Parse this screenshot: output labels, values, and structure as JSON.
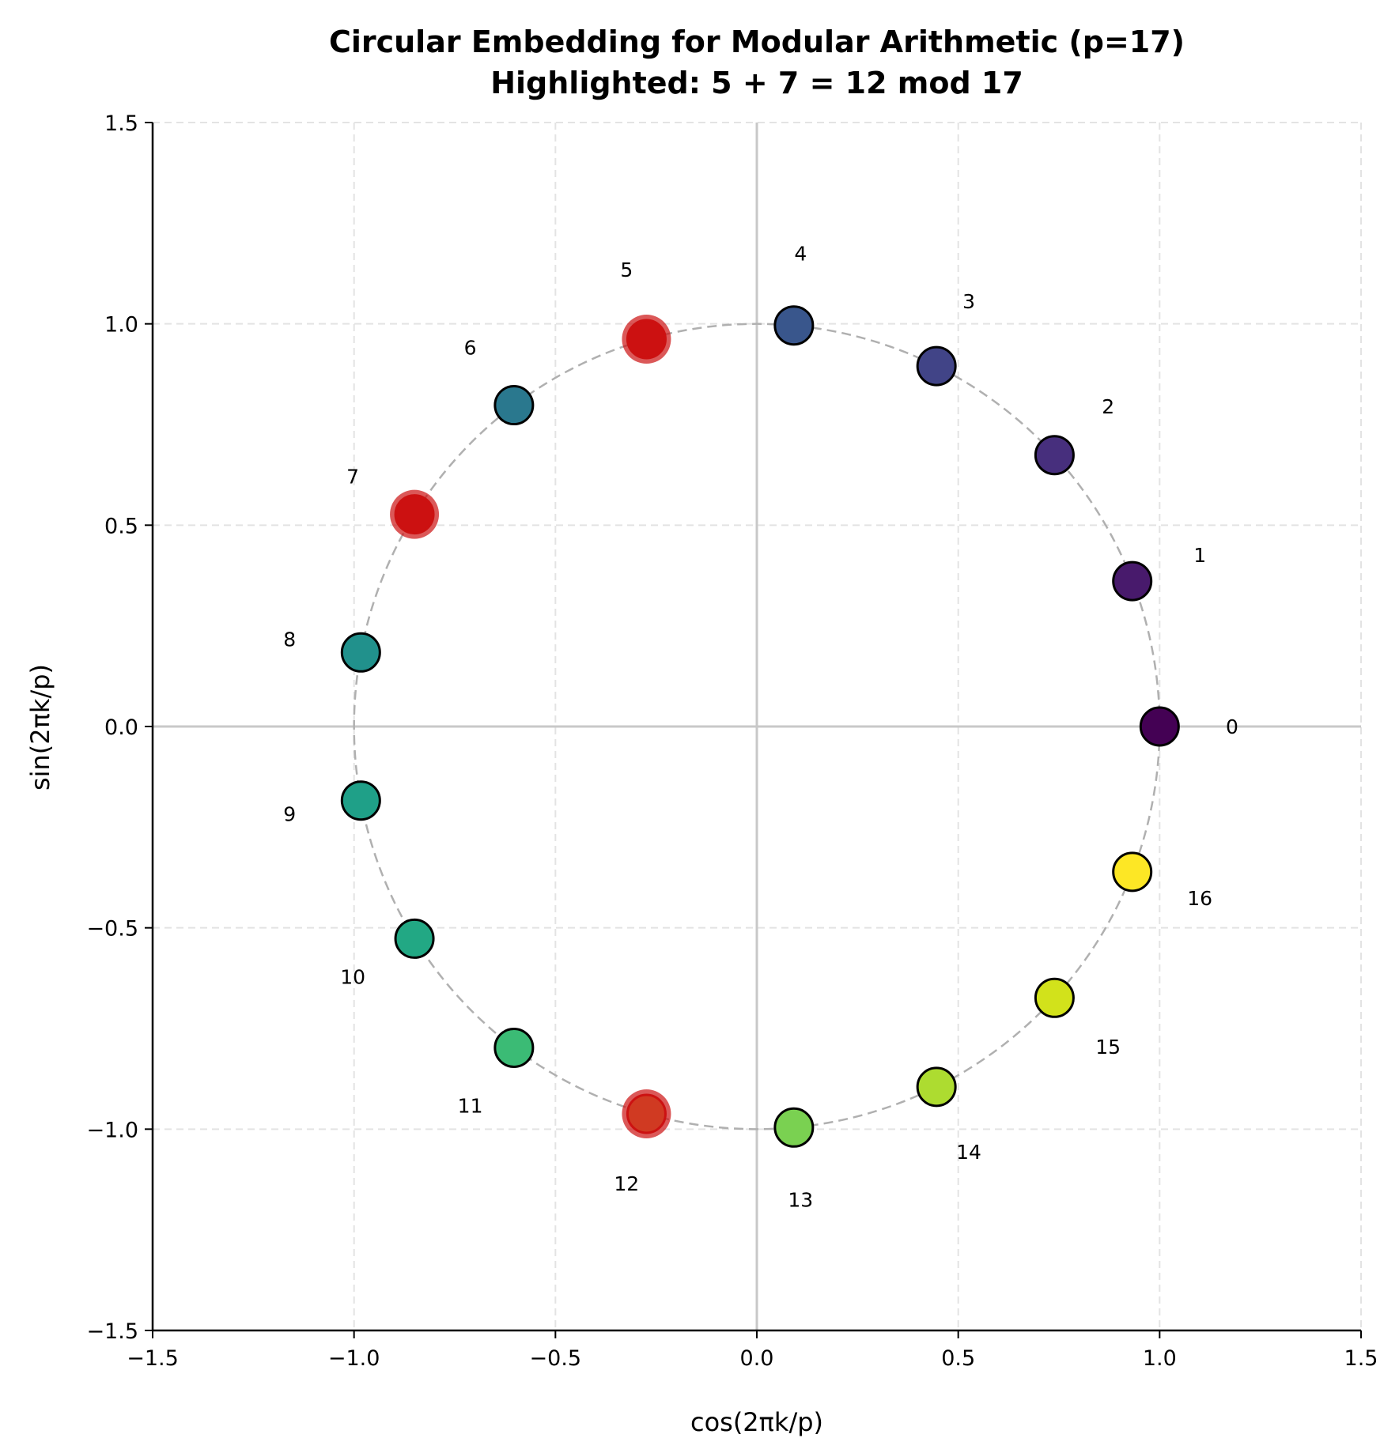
{
  "chart_data": {
    "type": "scatter",
    "title": "Circular Embedding for Modular Arithmetic (p=17)",
    "subtitle": "Highlighted: 5 + 7 = 12 mod 17",
    "xlabel": "cos(2πk/p)",
    "ylabel": "sin(2πk/p)",
    "xlim": [
      -1.5,
      1.5
    ],
    "ylim": [
      -1.5,
      1.5
    ],
    "xticks": [
      -1.5,
      -1.0,
      -0.5,
      0.0,
      0.5,
      1.0,
      1.5
    ],
    "yticks": [
      -1.5,
      -1.0,
      -0.5,
      0.0,
      0.5,
      1.0,
      1.5
    ],
    "xtick_labels": [
      "−1.5",
      "−1.0",
      "−0.5",
      "0.0",
      "0.5",
      "1.0",
      "1.5"
    ],
    "ytick_labels": [
      "−1.5",
      "−1.0",
      "−0.5",
      "0.0",
      "0.5",
      "1.0",
      "1.5"
    ],
    "grid": true,
    "grid_style": "dashed",
    "reference_circle": {
      "radius": 1.0,
      "style": "dashed",
      "color": "#b0b0b0"
    },
    "highlight_color": "#cc1111",
    "highlighted": [
      5,
      7,
      12
    ],
    "points": [
      {
        "label": "0",
        "x": 1.0,
        "y": 0.0,
        "color": "#440154"
      },
      {
        "label": "1",
        "x": 0.932,
        "y": 0.361,
        "color": "#481a6c"
      },
      {
        "label": "2",
        "x": 0.739,
        "y": 0.674,
        "color": "#472f7d"
      },
      {
        "label": "3",
        "x": 0.446,
        "y": 0.895,
        "color": "#414487"
      },
      {
        "label": "4",
        "x": 0.092,
        "y": 0.996,
        "color": "#39568c"
      },
      {
        "label": "5",
        "x": -0.274,
        "y": 0.962,
        "color": "#cc1111"
      },
      {
        "label": "6",
        "x": -0.603,
        "y": 0.798,
        "color": "#2a788e"
      },
      {
        "label": "7",
        "x": -0.85,
        "y": 0.527,
        "color": "#cc1111"
      },
      {
        "label": "8",
        "x": -0.983,
        "y": 0.184,
        "color": "#21918c"
      },
      {
        "label": "9",
        "x": -0.983,
        "y": -0.184,
        "color": "#1fa088"
      },
      {
        "label": "10",
        "x": -0.85,
        "y": -0.527,
        "color": "#22a884"
      },
      {
        "label": "11",
        "x": -0.603,
        "y": -0.798,
        "color": "#3bbb75"
      },
      {
        "label": "12",
        "x": -0.274,
        "y": -0.962,
        "color": "#d03a22"
      },
      {
        "label": "13",
        "x": 0.092,
        "y": -0.996,
        "color": "#7ad151"
      },
      {
        "label": "14",
        "x": 0.446,
        "y": -0.895,
        "color": "#addc30"
      },
      {
        "label": "15",
        "x": 0.739,
        "y": -0.674,
        "color": "#d2e21b"
      },
      {
        "label": "16",
        "x": 0.932,
        "y": -0.361,
        "color": "#fde725"
      }
    ]
  }
}
